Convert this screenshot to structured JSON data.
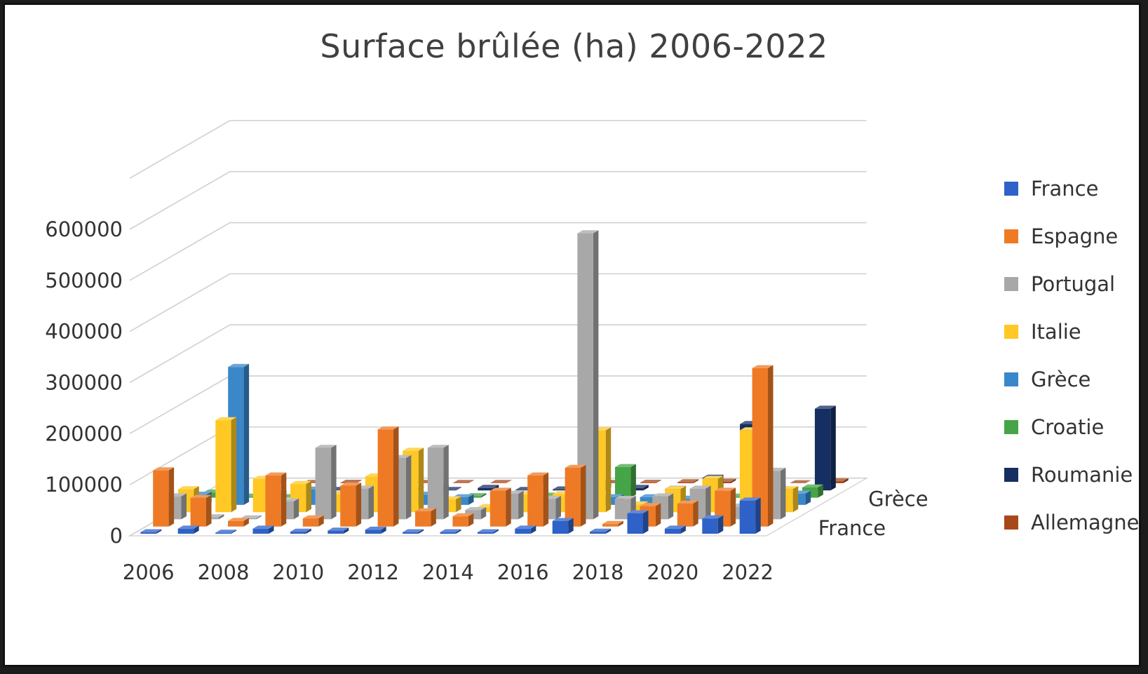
{
  "chart_data": {
    "type": "bar",
    "title": "Surface brûlée (ha) 2006-2022",
    "xlabel": "",
    "ylabel": "",
    "ylim": [
      0,
      600000
    ],
    "yticks": [
      0,
      100000,
      200000,
      300000,
      400000,
      500000,
      600000
    ],
    "categories": [
      2006,
      2007,
      2008,
      2009,
      2010,
      2011,
      2012,
      2013,
      2014,
      2015,
      2016,
      2017,
      2018,
      2019,
      2020,
      2021,
      2022
    ],
    "x_tick_labels": [
      "2006",
      "2008",
      "2010",
      "2012",
      "2014",
      "2016",
      "2018",
      "2020",
      "2022"
    ],
    "depth_tick_labels": [
      "France",
      "Grèce"
    ],
    "grid": true,
    "legend_position": "right",
    "series": [
      {
        "name": "France",
        "color": "#2E62C8",
        "values": [
          3000,
          10000,
          2000,
          10000,
          4000,
          6000,
          8000,
          3000,
          3000,
          3000,
          10000,
          25000,
          4000,
          40000,
          10000,
          30000,
          65000
        ]
      },
      {
        "name": "Espagne",
        "color": "#EE7A26",
        "values": [
          110000,
          56000,
          11000,
          100000,
          16000,
          80000,
          190000,
          30000,
          20000,
          70000,
          100000,
          115000,
          5000,
          40000,
          45000,
          70000,
          310000
        ]
      },
      {
        "name": "Portugal",
        "color": "#A8A8A8",
        "values": [
          45000,
          4000,
          2000,
          35000,
          140000,
          60000,
          120000,
          140000,
          18000,
          50000,
          40000,
          560000,
          40000,
          45000,
          60000,
          25000,
          95000
        ]
      },
      {
        "name": "Italie",
        "color": "#FFC824",
        "values": [
          45000,
          180000,
          65000,
          55000,
          35000,
          70000,
          120000,
          25000,
          10000,
          35000,
          35000,
          160000,
          15000,
          45000,
          65000,
          160000,
          45000
        ]
      },
      {
        "name": "Grèce",
        "color": "#3A87C9",
        "values": [
          20000,
          270000,
          22000,
          30000,
          4000,
          30000,
          20000,
          15000,
          25000,
          12000,
          25000,
          15000,
          15000,
          12000,
          10000,
          20000,
          22000
        ]
      },
      {
        "name": "Croatie",
        "color": "#46A546",
        "values": [
          10000,
          2000,
          1000,
          2000,
          1000,
          1000,
          20000,
          3000,
          1000,
          4000,
          15000,
          60000,
          2000,
          3000,
          2000,
          1000,
          20000
        ]
      },
      {
        "name": "Roumanie",
        "color": "#152F63",
        "values": [
          1000,
          1000,
          1000,
          1000,
          1000,
          1000,
          1000,
          5000,
          1000,
          2000,
          15000,
          5000,
          3000,
          25000,
          130000,
          1000,
          160000
        ]
      },
      {
        "name": "Allemagne",
        "color": "#A8481A",
        "values": [
          1000,
          1000,
          500,
          1000,
          500,
          500,
          500,
          500,
          500,
          1000,
          500,
          1000,
          2000,
          3000,
          400,
          200,
          4000
        ]
      }
    ]
  }
}
